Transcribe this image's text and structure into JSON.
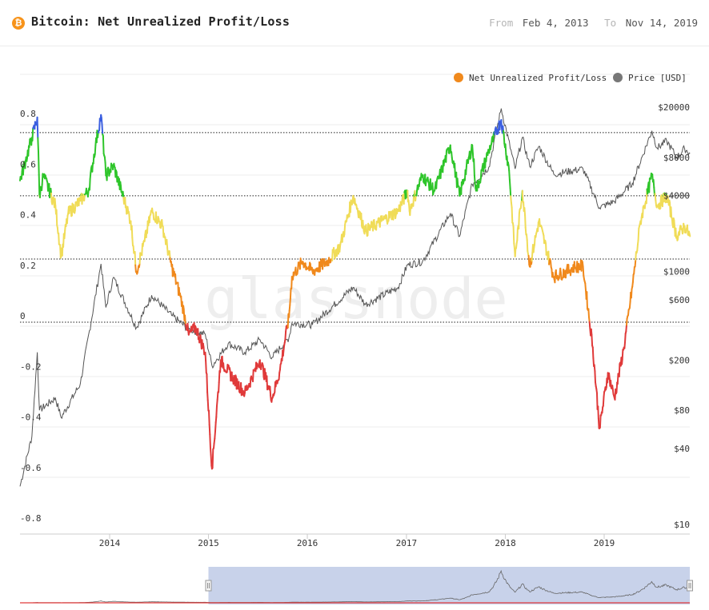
{
  "header": {
    "icon": "bitcoin-icon",
    "title": "Bitcoin: Net Unrealized Profit/Loss",
    "from_label": "From",
    "from_date": "Feb 4, 2013",
    "to_label": "To",
    "to_date": "Nov 14, 2019"
  },
  "watermark": "glassnode",
  "colors": {
    "blue": "#3b5fe0",
    "green": "#2ec52a",
    "yellow": "#f0dc58",
    "orange": "#f0891c",
    "red": "#e03a3a",
    "price": "#555555",
    "navigator_fill": "#c8d2ea"
  },
  "chart_data": {
    "type": "line",
    "legend": [
      {
        "name": "Net Unrealized Profit/Loss",
        "color": "#f0891c"
      },
      {
        "name": "Price [USD]",
        "color": "#777777"
      }
    ],
    "legend_position": "top-right",
    "x_ticks": [
      "2014",
      "2015",
      "2016",
      "2017",
      "2018",
      "2019"
    ],
    "y_left": {
      "ticks": [
        0.8,
        0.6,
        0.4,
        0.2,
        0,
        -0.2,
        -0.4,
        -0.6,
        -0.8
      ],
      "range": [
        -0.8,
        0.8
      ]
    },
    "y_right": {
      "scale": "log",
      "ticks": [
        "$10",
        "$40",
        "$80",
        "$200",
        "$600",
        "$1000",
        "$4000",
        "$8000",
        "$20000"
      ],
      "range": [
        10,
        20000
      ]
    },
    "reference_lines": [
      0.75,
      0.5,
      0.25,
      0
    ],
    "nupl": [
      [
        "2013-02-04",
        0.56
      ],
      [
        "2013-02-25",
        0.64
      ],
      [
        "2013-03-20",
        0.73
      ],
      [
        "2013-04-09",
        0.81
      ],
      [
        "2013-04-17",
        0.5
      ],
      [
        "2013-05-01",
        0.58
      ],
      [
        "2013-06-15",
        0.46
      ],
      [
        "2013-07-06",
        0.26
      ],
      [
        "2013-08-01",
        0.43
      ],
      [
        "2013-09-15",
        0.48
      ],
      [
        "2013-10-15",
        0.52
      ],
      [
        "2013-11-10",
        0.7
      ],
      [
        "2013-11-30",
        0.82
      ],
      [
        "2013-12-18",
        0.58
      ],
      [
        "2014-01-15",
        0.62
      ],
      [
        "2014-02-25",
        0.48
      ],
      [
        "2014-03-20",
        0.4
      ],
      [
        "2014-04-10",
        0.2
      ],
      [
        "2014-05-10",
        0.32
      ],
      [
        "2014-06-05",
        0.44
      ],
      [
        "2014-07-15",
        0.38
      ],
      [
        "2014-08-18",
        0.22
      ],
      [
        "2014-09-20",
        0.1
      ],
      [
        "2014-10-20",
        -0.05
      ],
      [
        "2014-11-15",
        -0.02
      ],
      [
        "2014-12-20",
        -0.12
      ],
      [
        "2015-01-14",
        -0.58
      ],
      [
        "2015-02-15",
        -0.15
      ],
      [
        "2015-04-01",
        -0.22
      ],
      [
        "2015-05-15",
        -0.28
      ],
      [
        "2015-07-10",
        -0.15
      ],
      [
        "2015-08-24",
        -0.3
      ],
      [
        "2015-09-20",
        -0.2
      ],
      [
        "2015-10-25",
        0.02
      ],
      [
        "2015-11-05",
        0.18
      ],
      [
        "2015-12-15",
        0.24
      ],
      [
        "2016-01-20",
        0.2
      ],
      [
        "2016-03-15",
        0.24
      ],
      [
        "2016-05-01",
        0.3
      ],
      [
        "2016-06-18",
        0.5
      ],
      [
        "2016-08-03",
        0.36
      ],
      [
        "2016-10-01",
        0.4
      ],
      [
        "2016-12-01",
        0.44
      ],
      [
        "2017-01-05",
        0.52
      ],
      [
        "2017-01-12",
        0.44
      ],
      [
        "2017-03-01",
        0.58
      ],
      [
        "2017-04-15",
        0.52
      ],
      [
        "2017-06-12",
        0.7
      ],
      [
        "2017-07-16",
        0.5
      ],
      [
        "2017-09-01",
        0.7
      ],
      [
        "2017-09-15",
        0.52
      ],
      [
        "2017-11-01",
        0.68
      ],
      [
        "2017-12-17",
        0.8
      ],
      [
        "2018-01-15",
        0.6
      ],
      [
        "2018-02-06",
        0.26
      ],
      [
        "2018-03-05",
        0.52
      ],
      [
        "2018-04-01",
        0.22
      ],
      [
        "2018-05-05",
        0.4
      ],
      [
        "2018-06-29",
        0.18
      ],
      [
        "2018-08-14",
        0.2
      ],
      [
        "2018-09-15",
        0.22
      ],
      [
        "2018-10-15",
        0.22
      ],
      [
        "2018-11-20",
        -0.1
      ],
      [
        "2018-12-15",
        -0.42
      ],
      [
        "2019-01-15",
        -0.2
      ],
      [
        "2019-02-08",
        -0.3
      ],
      [
        "2019-03-15",
        -0.1
      ],
      [
        "2019-04-15",
        0.14
      ],
      [
        "2019-05-15",
        0.4
      ],
      [
        "2019-06-26",
        0.58
      ],
      [
        "2019-07-16",
        0.46
      ],
      [
        "2019-08-20",
        0.5
      ],
      [
        "2019-09-26",
        0.34
      ],
      [
        "2019-10-25",
        0.38
      ],
      [
        "2019-11-14",
        0.34
      ]
    ],
    "price": [
      [
        "2013-02-04",
        20
      ],
      [
        "2013-03-20",
        50
      ],
      [
        "2013-04-09",
        230
      ],
      [
        "2013-04-17",
        80
      ],
      [
        "2013-06-15",
        100
      ],
      [
        "2013-07-06",
        70
      ],
      [
        "2013-09-15",
        130
      ],
      [
        "2013-11-30",
        1150
      ],
      [
        "2013-12-18",
        520
      ],
      [
        "2014-01-15",
        900
      ],
      [
        "2014-04-10",
        360
      ],
      [
        "2014-06-05",
        650
      ],
      [
        "2014-08-18",
        450
      ],
      [
        "2014-10-20",
        350
      ],
      [
        "2014-12-20",
        320
      ],
      [
        "2015-01-14",
        180
      ],
      [
        "2015-03-15",
        270
      ],
      [
        "2015-05-15",
        230
      ],
      [
        "2015-07-10",
        290
      ],
      [
        "2015-08-24",
        210
      ],
      [
        "2015-10-25",
        300
      ],
      [
        "2015-11-05",
        390
      ],
      [
        "2016-01-20",
        380
      ],
      [
        "2016-06-18",
        750
      ],
      [
        "2016-08-03",
        550
      ],
      [
        "2016-12-01",
        750
      ],
      [
        "2017-01-05",
        1130
      ],
      [
        "2017-03-01",
        1200
      ],
      [
        "2017-06-12",
        2900
      ],
      [
        "2017-07-16",
        1900
      ],
      [
        "2017-09-01",
        4900
      ],
      [
        "2017-11-01",
        6700
      ],
      [
        "2017-12-17",
        19500
      ],
      [
        "2018-02-06",
        6500
      ],
      [
        "2018-03-05",
        11500
      ],
      [
        "2018-04-01",
        6800
      ],
      [
        "2018-05-05",
        9800
      ],
      [
        "2018-06-29",
        5900
      ],
      [
        "2018-10-15",
        6500
      ],
      [
        "2018-12-15",
        3200
      ],
      [
        "2019-02-08",
        3600
      ],
      [
        "2019-04-15",
        5000
      ],
      [
        "2019-06-26",
        13000
      ],
      [
        "2019-07-16",
        9500
      ],
      [
        "2019-08-20",
        10800
      ],
      [
        "2019-09-26",
        8000
      ],
      [
        "2019-10-25",
        9400
      ],
      [
        "2019-11-14",
        8600
      ]
    ]
  },
  "navigator": {
    "selected_range": [
      "2015-01-01",
      "2019-11-14"
    ]
  }
}
